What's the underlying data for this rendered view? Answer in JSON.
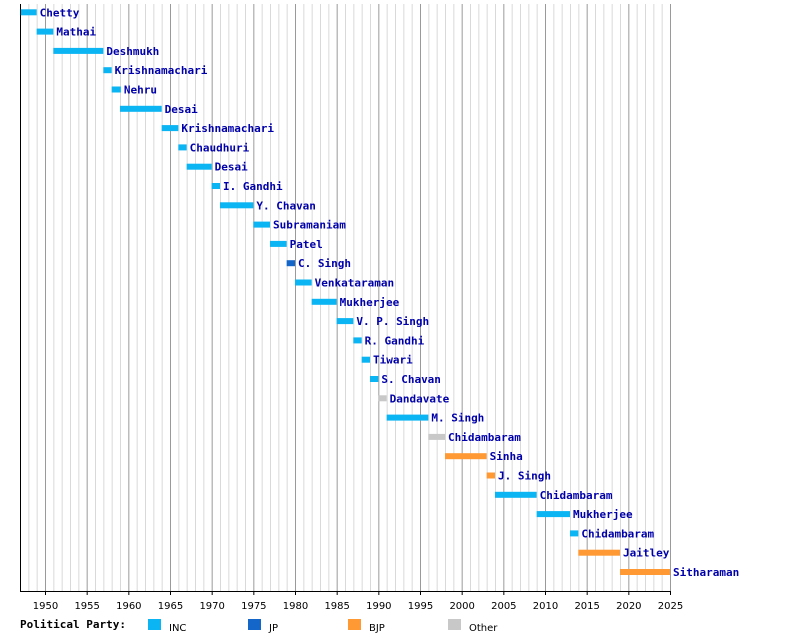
{
  "chart_data": {
    "type": "bar",
    "subtype": "horizontal-timeline",
    "xlim": [
      1947,
      2025
    ],
    "x_ticks": [
      1950,
      1955,
      1960,
      1965,
      1970,
      1975,
      1980,
      1985,
      1990,
      1995,
      2000,
      2005,
      2010,
      2015,
      2020,
      2025
    ],
    "grid": "vertical, every year",
    "legend_title": "Political Party:",
    "legend_placement": "bottom",
    "parties": [
      {
        "key": "INC",
        "label": "INC",
        "color": "#0bb4f2"
      },
      {
        "key": "JP",
        "label": "JP",
        "color": "#1566c9"
      },
      {
        "key": "BJP",
        "label": "BJP",
        "color": "#ff9933"
      },
      {
        "key": "Other",
        "label": "Other",
        "color": "#c8c8c8"
      }
    ],
    "tenures": [
      {
        "name": "Chetty",
        "start": 1947.1,
        "end": 1949.0,
        "party": "INC"
      },
      {
        "name": "Mathai",
        "start": 1949.0,
        "end": 1951.0,
        "party": "INC"
      },
      {
        "name": "Deshmukh",
        "start": 1951.0,
        "end": 1957.0,
        "party": "INC"
      },
      {
        "name": "Krishnamachari",
        "start": 1957.0,
        "end": 1958.0,
        "party": "INC"
      },
      {
        "name": "Nehru",
        "start": 1958.0,
        "end": 1959.1,
        "party": "INC"
      },
      {
        "name": "Desai",
        "start": 1959.0,
        "end": 1964.0,
        "party": "INC"
      },
      {
        "name": "Krishnamachari",
        "start": 1964.0,
        "end": 1966.0,
        "party": "INC"
      },
      {
        "name": "Chaudhuri",
        "start": 1966.0,
        "end": 1967.0,
        "party": "INC"
      },
      {
        "name": "Desai",
        "start": 1967.0,
        "end": 1970.0,
        "party": "INC"
      },
      {
        "name": "I. Gandhi",
        "start": 1970.0,
        "end": 1971.0,
        "party": "INC"
      },
      {
        "name": "Y. Chavan",
        "start": 1971.0,
        "end": 1975.0,
        "party": "INC"
      },
      {
        "name": "Subramaniam",
        "start": 1975.0,
        "end": 1977.0,
        "party": "INC"
      },
      {
        "name": "Patel",
        "start": 1977.0,
        "end": 1979.0,
        "party": "INC"
      },
      {
        "name": "C. Singh",
        "start": 1979.0,
        "end": 1980.0,
        "party": "JP"
      },
      {
        "name": "Venkataraman",
        "start": 1980.0,
        "end": 1982.0,
        "party": "INC"
      },
      {
        "name": "Mukherjee",
        "start": 1982.0,
        "end": 1985.0,
        "party": "INC"
      },
      {
        "name": "V. P. Singh",
        "start": 1985.0,
        "end": 1987.0,
        "party": "INC"
      },
      {
        "name": "R. Gandhi",
        "start": 1987.0,
        "end": 1988.0,
        "party": "INC"
      },
      {
        "name": "Tiwari",
        "start": 1988.0,
        "end": 1989.0,
        "party": "INC"
      },
      {
        "name": "S. Chavan",
        "start": 1989.0,
        "end": 1990.0,
        "party": "INC"
      },
      {
        "name": "Dandavate",
        "start": 1990.0,
        "end": 1991.0,
        "party": "Other"
      },
      {
        "name": "M. Singh",
        "start": 1991.0,
        "end": 1996.0,
        "party": "INC"
      },
      {
        "name": "Chidambaram",
        "start": 1996.0,
        "end": 1998.0,
        "party": "Other"
      },
      {
        "name": "Sinha",
        "start": 1998.0,
        "end": 2003.0,
        "party": "BJP"
      },
      {
        "name": "J. Singh",
        "start": 2003.0,
        "end": 2004.0,
        "party": "BJP"
      },
      {
        "name": "Chidambaram",
        "start": 2004.0,
        "end": 2009.0,
        "party": "INC"
      },
      {
        "name": "Mukherjee",
        "start": 2009.0,
        "end": 2013.0,
        "party": "INC"
      },
      {
        "name": "Chidambaram",
        "start": 2013.0,
        "end": 2014.0,
        "party": "INC"
      },
      {
        "name": "Jaitley",
        "start": 2014.0,
        "end": 2019.0,
        "party": "BJP"
      },
      {
        "name": "Sitharaman",
        "start": 2019.0,
        "end": 2025.0,
        "party": "BJP"
      }
    ]
  }
}
